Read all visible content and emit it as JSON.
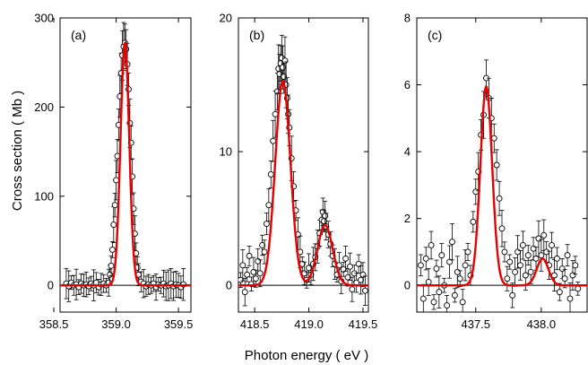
{
  "chart_data": {
    "type": "scatter",
    "ylabel": "Cross section  ( Mb )",
    "xlabel": "Photon energy  ( eV )",
    "fit_color": "#e60000",
    "marker": "open-circle-with-errorbars",
    "panels": [
      {
        "label": "(a)",
        "xlim": [
          358.55,
          359.6
        ],
        "ylim": [
          -30,
          300
        ],
        "xticks": [
          "358.5",
          "359.0",
          "359.5"
        ],
        "xtick_values": [
          358.5,
          359.0,
          359.5
        ],
        "yticks": [
          "0",
          "100",
          "200",
          "300"
        ],
        "ytick_values": [
          0,
          100,
          200,
          300
        ],
        "fit_peaks": [
          {
            "center": 359.07,
            "height": 272,
            "sigma": 0.035
          }
        ],
        "points": [
          [
            358.6,
            2
          ],
          [
            358.62,
            -1
          ],
          [
            358.64,
            3
          ],
          [
            358.66,
            0
          ],
          [
            358.68,
            1
          ],
          [
            358.7,
            -2
          ],
          [
            358.72,
            2
          ],
          [
            358.74,
            0
          ],
          [
            358.76,
            1
          ],
          [
            358.78,
            -1
          ],
          [
            358.8,
            2
          ],
          [
            358.82,
            0
          ],
          [
            358.84,
            3
          ],
          [
            358.86,
            -2
          ],
          [
            358.88,
            1
          ],
          [
            358.9,
            2
          ],
          [
            358.92,
            0
          ],
          [
            358.94,
            3
          ],
          [
            358.95,
            12
          ],
          [
            358.96,
            22
          ],
          [
            358.97,
            40
          ],
          [
            358.98,
            68
          ],
          [
            358.99,
            90
          ],
          [
            359.0,
            118
          ],
          [
            359.01,
            145
          ],
          [
            359.02,
            180
          ],
          [
            359.03,
            212
          ],
          [
            359.04,
            238
          ],
          [
            359.05,
            258
          ],
          [
            359.06,
            268
          ],
          [
            359.07,
            272
          ],
          [
            359.08,
            265
          ],
          [
            359.09,
            248
          ],
          [
            359.1,
            220
          ],
          [
            359.11,
            182
          ],
          [
            359.12,
            160
          ],
          [
            359.13,
            122
          ],
          [
            359.14,
            86
          ],
          [
            359.15,
            58
          ],
          [
            359.16,
            36
          ],
          [
            359.17,
            20
          ],
          [
            359.18,
            12
          ],
          [
            359.2,
            4
          ],
          [
            359.22,
            2
          ],
          [
            359.24,
            -1
          ],
          [
            359.26,
            1
          ],
          [
            359.28,
            0
          ],
          [
            359.3,
            2
          ],
          [
            359.32,
            -2
          ],
          [
            359.34,
            1
          ],
          [
            359.36,
            0
          ],
          [
            359.38,
            2
          ],
          [
            359.4,
            -1
          ],
          [
            359.42,
            0
          ],
          [
            359.44,
            2
          ],
          [
            359.46,
            -1
          ],
          [
            359.48,
            1
          ],
          [
            359.5,
            0
          ],
          [
            359.52,
            -2
          ],
          [
            359.54,
            1
          ]
        ]
      },
      {
        "label": "(b)",
        "xlim": [
          418.35,
          419.55
        ],
        "ylim": [
          -2,
          20
        ],
        "xticks": [
          "418.5",
          "419.0",
          "419.5"
        ],
        "xtick_values": [
          418.5,
          419.0,
          419.5
        ],
        "yticks": [
          "0",
          "10",
          "20"
        ],
        "ytick_values": [
          0,
          10,
          20
        ],
        "fit_peaks": [
          {
            "center": 418.76,
            "height": 15.3,
            "sigma": 0.07
          },
          {
            "center": 419.15,
            "height": 4.5,
            "sigma": 0.07
          }
        ],
        "points": [
          [
            418.37,
            0.4
          ],
          [
            418.39,
            1.5
          ],
          [
            418.41,
            -0.5
          ],
          [
            418.43,
            0.8
          ],
          [
            418.45,
            2.2
          ],
          [
            418.47,
            0.1
          ],
          [
            418.49,
            1.0
          ],
          [
            418.51,
            0.5
          ],
          [
            418.53,
            1.8
          ],
          [
            418.55,
            0.9
          ],
          [
            418.57,
            3.0
          ],
          [
            418.59,
            2.5
          ],
          [
            418.61,
            4.6
          ],
          [
            418.63,
            6.0
          ],
          [
            418.65,
            8.3
          ],
          [
            418.67,
            10.8
          ],
          [
            418.69,
            12.8
          ],
          [
            418.71,
            14.5
          ],
          [
            418.72,
            16.2
          ],
          [
            418.73,
            15.8
          ],
          [
            418.74,
            16.6
          ],
          [
            418.75,
            17.0
          ],
          [
            418.76,
            16.3
          ],
          [
            418.77,
            15.6
          ],
          [
            418.78,
            16.8
          ],
          [
            418.79,
            15.0
          ],
          [
            418.8,
            14.0
          ],
          [
            418.81,
            12.8
          ],
          [
            418.82,
            11.8
          ],
          [
            418.84,
            9.5
          ],
          [
            418.86,
            7.4
          ],
          [
            418.88,
            5.6
          ],
          [
            418.9,
            3.8
          ],
          [
            418.92,
            2.5
          ],
          [
            418.94,
            1.6
          ],
          [
            418.96,
            0.9
          ],
          [
            418.98,
            0.4
          ],
          [
            419.0,
            1.3
          ],
          [
            419.02,
            0.8
          ],
          [
            419.04,
            1.6
          ],
          [
            419.06,
            2.1
          ],
          [
            419.08,
            2.9
          ],
          [
            419.1,
            3.9
          ],
          [
            419.12,
            4.9
          ],
          [
            419.13,
            5.5
          ],
          [
            419.14,
            4.8
          ],
          [
            419.15,
            5.2
          ],
          [
            419.16,
            4.4
          ],
          [
            419.18,
            3.8
          ],
          [
            419.2,
            3.1
          ],
          [
            419.22,
            2.2
          ],
          [
            419.24,
            1.6
          ],
          [
            419.26,
            0.8
          ],
          [
            419.28,
            1.5
          ],
          [
            419.3,
            0.3
          ],
          [
            419.32,
            1.2
          ],
          [
            419.34,
            2.0
          ],
          [
            419.36,
            0.6
          ],
          [
            419.38,
            1.4
          ],
          [
            419.4,
            -0.3
          ],
          [
            419.42,
            0.9
          ],
          [
            419.44,
            0.2
          ],
          [
            419.46,
            1.6
          ],
          [
            419.48,
            0.4
          ],
          [
            419.5,
            0.8
          ],
          [
            419.52,
            -0.4
          ]
        ]
      },
      {
        "label": "(c)",
        "xlim": [
          437.05,
          438.35
        ],
        "ylim": [
          -0.8,
          8
        ],
        "xticks": [
          "437.5",
          "438.0"
        ],
        "xtick_values": [
          437.5,
          438.0
        ],
        "yticks": [
          "0",
          "2",
          "4",
          "6",
          "8"
        ],
        "ytick_values": [
          0,
          2,
          4,
          6,
          8
        ],
        "fit_peaks": [
          {
            "center": 437.58,
            "height": 5.95,
            "sigma": 0.045
          },
          {
            "center": 438.01,
            "height": 0.8,
            "sigma": 0.045
          }
        ],
        "points": [
          [
            437.08,
            0.6
          ],
          [
            437.1,
            -0.4
          ],
          [
            437.12,
            0.8
          ],
          [
            437.14,
            0.1
          ],
          [
            437.16,
            1.2
          ],
          [
            437.18,
            -0.5
          ],
          [
            437.2,
            0.5
          ],
          [
            437.22,
            -0.2
          ],
          [
            437.24,
            0.9
          ],
          [
            437.26,
            0.0
          ],
          [
            437.28,
            -0.6
          ],
          [
            437.3,
            0.7
          ],
          [
            437.32,
            1.3
          ],
          [
            437.34,
            -0.3
          ],
          [
            437.36,
            0.4
          ],
          [
            437.38,
            0.2
          ],
          [
            437.4,
            -0.5
          ],
          [
            437.42,
            0.6
          ],
          [
            437.44,
            1.0
          ],
          [
            437.46,
            0.3
          ],
          [
            437.48,
            1.9
          ],
          [
            437.5,
            2.8
          ],
          [
            437.52,
            3.4
          ],
          [
            437.54,
            4.5
          ],
          [
            437.56,
            5.1
          ],
          [
            437.58,
            6.2
          ],
          [
            437.6,
            5.6
          ],
          [
            437.62,
            5.0
          ],
          [
            437.64,
            4.4
          ],
          [
            437.66,
            3.6
          ],
          [
            437.68,
            2.6
          ],
          [
            437.7,
            1.7
          ],
          [
            437.72,
            1.0
          ],
          [
            437.74,
            0.2
          ],
          [
            437.76,
            0.7
          ],
          [
            437.78,
            -0.3
          ],
          [
            437.8,
            0.4
          ],
          [
            437.82,
            1.0
          ],
          [
            437.84,
            0.6
          ],
          [
            437.86,
            1.2
          ],
          [
            437.88,
            0.3
          ],
          [
            437.9,
            0.9
          ],
          [
            437.92,
            0.4
          ],
          [
            437.94,
            1.1
          ],
          [
            437.96,
            0.8
          ],
          [
            437.98,
            1.4
          ],
          [
            438.0,
            0.9
          ],
          [
            438.02,
            1.5
          ],
          [
            438.04,
            1.0
          ],
          [
            438.06,
            0.6
          ],
          [
            438.08,
            1.2
          ],
          [
            438.1,
            0.3
          ],
          [
            438.12,
            0.8
          ],
          [
            438.14,
            -0.2
          ],
          [
            438.16,
            0.5
          ],
          [
            438.18,
            0.2
          ],
          [
            438.2,
            0.9
          ],
          [
            438.22,
            -0.4
          ],
          [
            438.24,
            0.3
          ],
          [
            438.26,
            0.6
          ],
          [
            438.28,
            -0.1
          ]
        ]
      }
    ]
  }
}
